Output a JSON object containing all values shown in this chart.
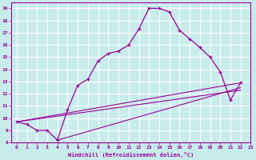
{
  "xlabel": "Windchill (Refroidissement éolien,°C)",
  "xlim": [
    -0.5,
    23
  ],
  "ylim": [
    8,
    19.5
  ],
  "xticks": [
    0,
    1,
    2,
    3,
    4,
    5,
    6,
    7,
    8,
    9,
    10,
    11,
    12,
    13,
    14,
    15,
    16,
    17,
    18,
    19,
    20,
    21,
    22,
    23
  ],
  "yticks": [
    8,
    9,
    10,
    11,
    12,
    13,
    14,
    15,
    16,
    17,
    18,
    19
  ],
  "bg_color": "#c8ecec",
  "line_color": "#990099",
  "grid_color": "#ffffff",
  "main_line": [
    [
      0,
      9.7
    ],
    [
      1,
      9.5
    ],
    [
      2,
      9.0
    ],
    [
      3,
      9.0
    ],
    [
      4,
      8.2
    ],
    [
      5,
      10.7
    ],
    [
      6,
      12.7
    ],
    [
      7,
      13.2
    ],
    [
      8,
      14.7
    ],
    [
      9,
      15.3
    ],
    [
      10,
      15.5
    ],
    [
      11,
      16.0
    ],
    [
      12,
      17.3
    ],
    [
      13,
      19.0
    ],
    [
      14,
      19.0
    ],
    [
      15,
      18.7
    ],
    [
      16,
      17.2
    ],
    [
      17,
      16.5
    ],
    [
      18,
      15.8
    ],
    [
      19,
      15.0
    ],
    [
      20,
      13.8
    ],
    [
      21,
      11.5
    ],
    [
      22,
      12.9
    ]
  ],
  "line2": [
    [
      0,
      9.7
    ],
    [
      22,
      12.9
    ]
  ],
  "line3": [
    [
      0,
      9.7
    ],
    [
      22,
      12.3
    ]
  ],
  "line4": [
    [
      4,
      8.2
    ],
    [
      22,
      12.5
    ]
  ]
}
